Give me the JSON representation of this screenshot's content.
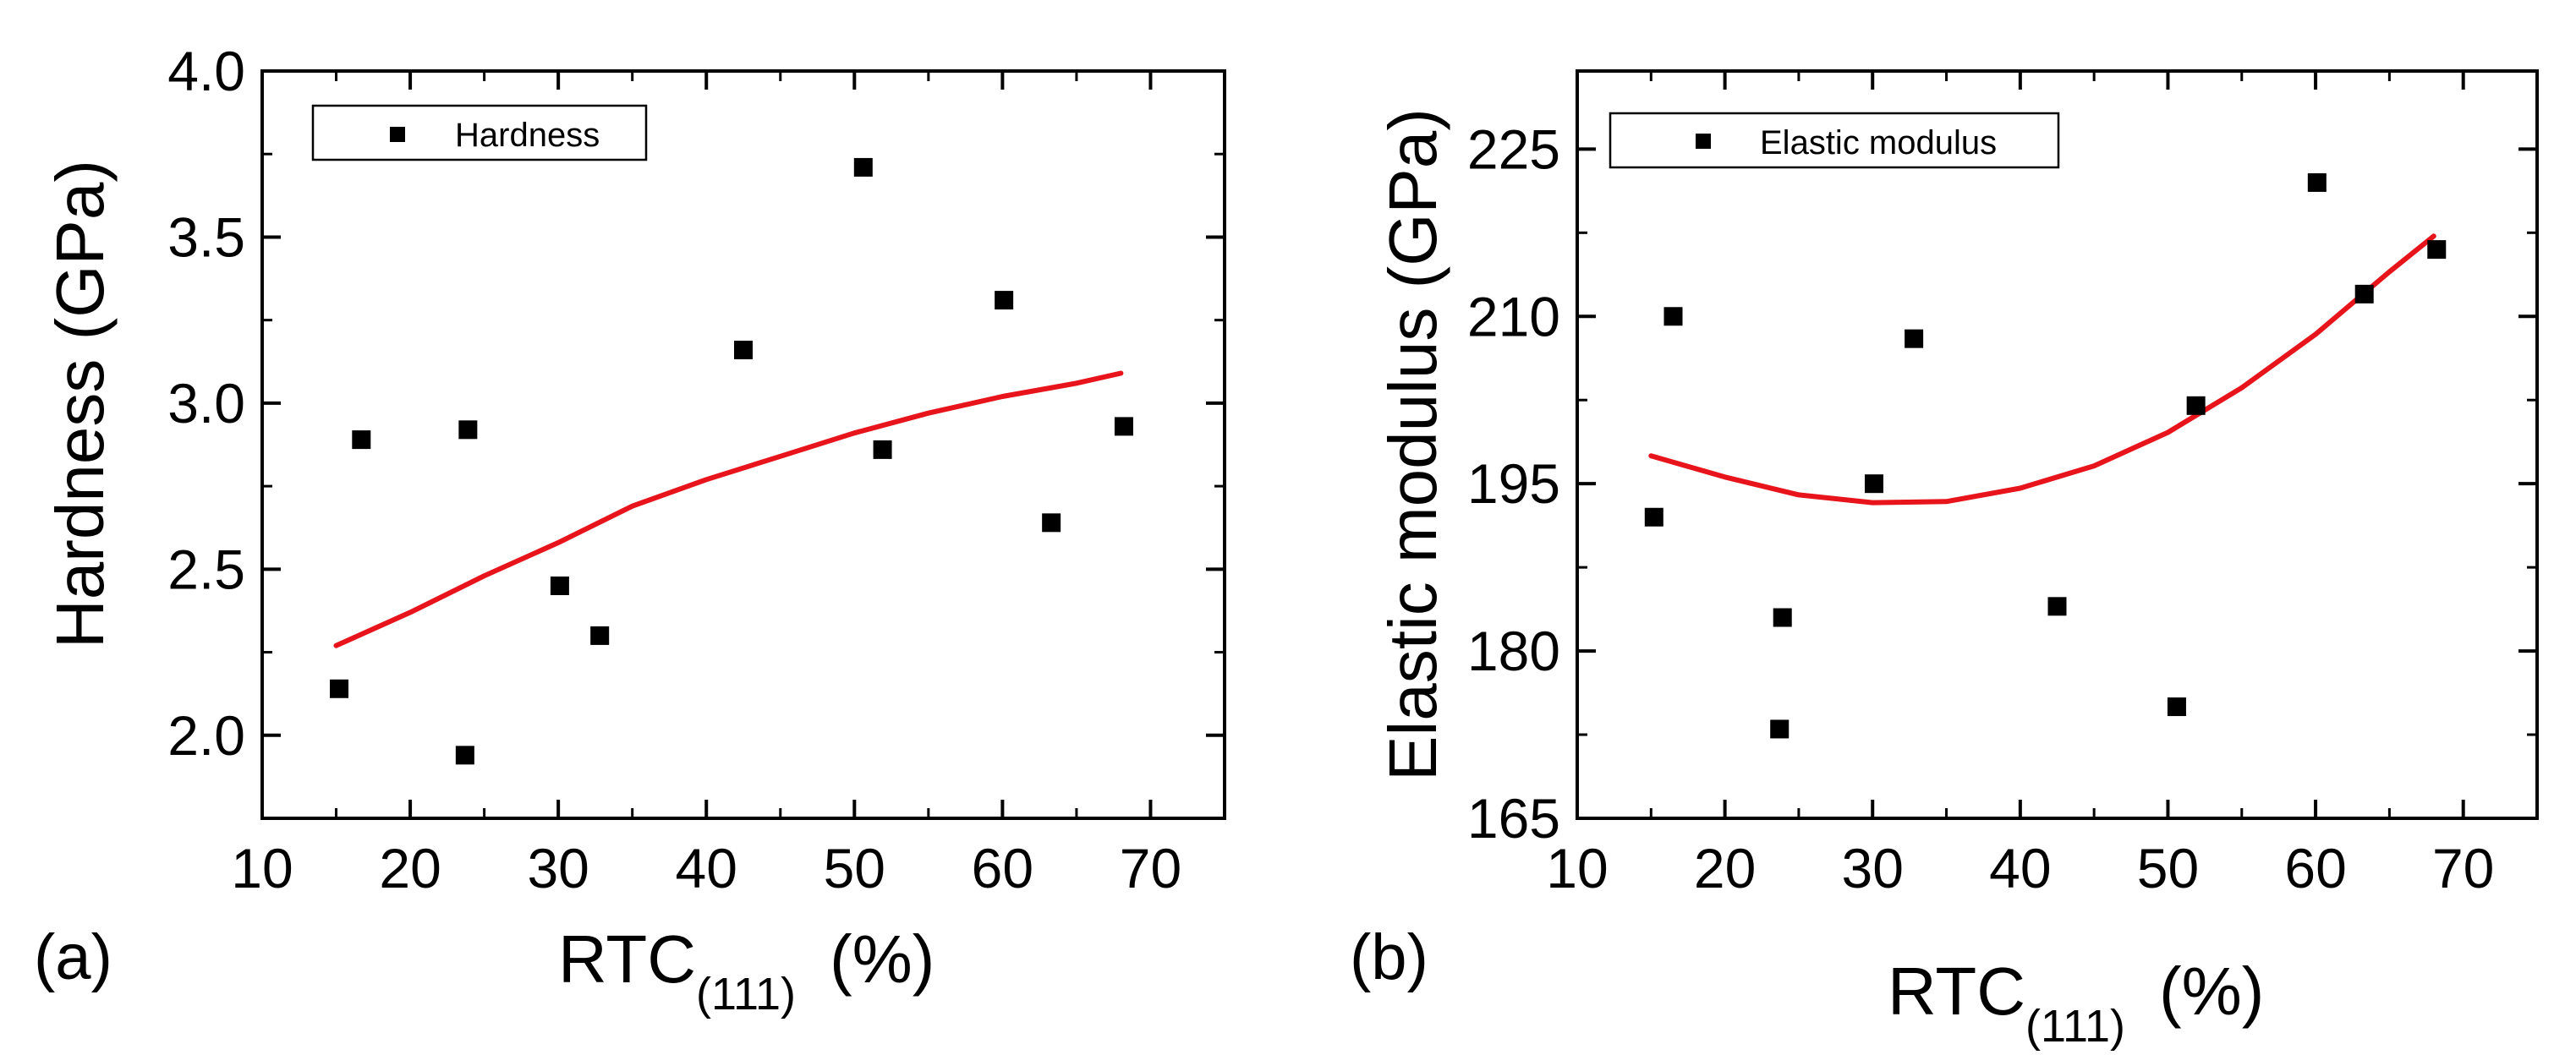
{
  "chart_data": [
    {
      "type": "scatter",
      "panel_label": "(a)",
      "xlabel": "RTC",
      "xlabel_subscript": "(111)",
      "xlabel_unit": "(%)",
      "ylabel": "Hardness (GPa)",
      "xlim": [
        10,
        75
      ],
      "ylim": [
        1.75,
        4.0
      ],
      "xticks": [
        10,
        20,
        30,
        40,
        50,
        60,
        70
      ],
      "yticks": [
        2.0,
        2.5,
        3.0,
        3.5,
        4.0
      ],
      "ytick_labels": [
        "2.0",
        "2.5",
        "3.0",
        "3.5",
        "4.0"
      ],
      "legend": [
        "Hardness"
      ],
      "series": [
        {
          "name": "Hardness",
          "x": [
            15.2,
            16.7,
            23.7,
            23.9,
            30.1,
            32.8,
            42.5,
            50.6,
            51.9,
            60.1,
            63.3,
            68.2
          ],
          "y": [
            2.14,
            2.89,
            1.94,
            2.92,
            2.45,
            2.3,
            3.16,
            3.71,
            2.86,
            3.31,
            2.64,
            2.93
          ]
        }
      ],
      "fit": {
        "x": [
          15,
          20,
          25,
          30,
          35,
          40,
          45,
          50,
          55,
          60,
          65,
          68
        ],
        "y": [
          2.27,
          2.37,
          2.48,
          2.58,
          2.69,
          2.77,
          2.84,
          2.91,
          2.97,
          3.02,
          3.06,
          3.09
        ]
      },
      "fit_color": "#e8141b"
    },
    {
      "type": "scatter",
      "panel_label": "(b)",
      "xlabel": "RTC",
      "xlabel_subscript": "(111)",
      "xlabel_unit": "(%)",
      "ylabel": "Elastic modulus (GPa)",
      "xlim": [
        10,
        75
      ],
      "ylim": [
        165,
        232
      ],
      "xticks": [
        10,
        20,
        30,
        40,
        50,
        60,
        70
      ],
      "yticks": [
        165,
        180,
        195,
        210,
        225
      ],
      "ytick_labels": [
        "165",
        "180",
        "195",
        "210",
        "225"
      ],
      "legend": [
        "Elastic modulus"
      ],
      "series": [
        {
          "name": "Elastic modulus",
          "x": [
            15.2,
            16.5,
            23.7,
            23.9,
            30.1,
            32.8,
            42.5,
            50.6,
            51.9,
            60.1,
            63.3,
            68.2
          ],
          "y": [
            192,
            210,
            173,
            183,
            195,
            208,
            184,
            175,
            202,
            222,
            212,
            216
          ]
        }
      ],
      "fit": {
        "x": [
          15,
          20,
          25,
          30,
          35,
          40,
          45,
          50,
          55,
          60,
          65,
          68
        ],
        "y": [
          197.5,
          195.6,
          194.0,
          193.3,
          193.4,
          194.6,
          196.6,
          199.6,
          203.6,
          208.4,
          214.0,
          217.2
        ]
      },
      "fit_color": "#e8141b"
    }
  ]
}
